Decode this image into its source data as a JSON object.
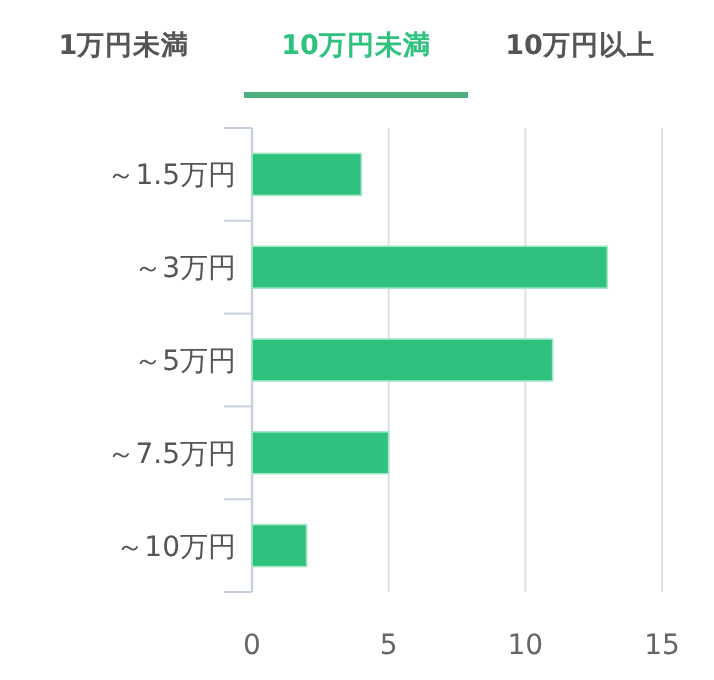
{
  "chart_data": {
    "type": "bar",
    "orientation": "horizontal",
    "title": "10万円未満",
    "annotations": [
      "1万円未満",
      "10万円以上"
    ],
    "categories": [
      "～1.5万円",
      "～3万円",
      "～5万円",
      "～7.5万円",
      "～10万円"
    ],
    "values": [
      4,
      13,
      11,
      5,
      2
    ],
    "color": "#2ec27e",
    "xlim": [
      0,
      15
    ],
    "xticks": [
      0,
      5,
      10,
      15
    ],
    "grid": "x"
  }
}
